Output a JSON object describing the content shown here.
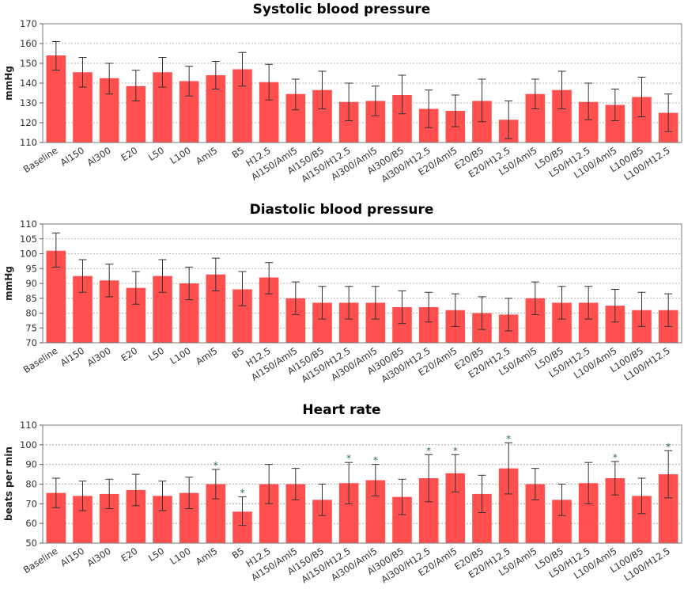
{
  "chart_data": [
    {
      "type": "bar",
      "title": "Systolic blood pressure",
      "xlabel": "",
      "ylabel": "mmHg",
      "ylim": [
        110,
        170
      ],
      "yticks": [
        110,
        120,
        130,
        140,
        150,
        160,
        170
      ],
      "categories": [
        "Baseline",
        "Al150",
        "Al300",
        "E20",
        "L50",
        "L100",
        "Aml5",
        "B5",
        "H12.5",
        "Al150/Aml5",
        "Al150/B5",
        "Al150/H12.5",
        "Al300/Aml5",
        "Al300/B5",
        "Al300/H12.5",
        "E20/Aml5",
        "E20/B5",
        "E20/H12.5",
        "L50/Aml5",
        "L50/B5",
        "L50/H12.5",
        "L100/Aml5",
        "L100/B5",
        "L100/H12.5"
      ],
      "values": [
        154,
        145.5,
        142.5,
        138.5,
        145.5,
        141,
        144,
        147,
        140.5,
        134.5,
        136.5,
        130.5,
        131,
        134,
        127,
        126,
        131,
        121.5,
        134.5,
        136.5,
        130.5,
        129,
        133,
        125
      ],
      "error_upper": [
        161,
        153,
        150,
        146.5,
        153,
        148.5,
        151,
        155.5,
        149.5,
        142,
        146,
        140,
        138.5,
        144,
        136.5,
        134,
        142,
        131,
        142,
        146,
        140,
        137,
        143,
        134.5
      ],
      "error_lower": [
        146.5,
        138,
        134.5,
        131,
        138,
        133.5,
        137,
        138.5,
        131.5,
        126.5,
        127,
        121,
        123.5,
        124.5,
        117.5,
        118,
        120.5,
        112,
        127,
        127,
        121.5,
        121,
        123,
        115.5
      ],
      "significant": [],
      "grid": true,
      "color": "#ff4f4f"
    },
    {
      "type": "bar",
      "title": "Diastolic blood pressure",
      "xlabel": "",
      "ylabel": "mmHg",
      "ylim": [
        70,
        110
      ],
      "yticks": [
        70,
        75,
        80,
        85,
        90,
        95,
        100,
        105,
        110
      ],
      "categories": [
        "Baseline",
        "Al150",
        "Al300",
        "E20",
        "L50",
        "L100",
        "Aml5",
        "B5",
        "H12.5",
        "Al150/Aml5",
        "Al150/B5",
        "Al150/H12.5",
        "Al300/Aml5",
        "Al300/B5",
        "Al300/H12.5",
        "E20/Aml5",
        "E20/B5",
        "E20/H12.5",
        "L50/Aml5",
        "L50/B5",
        "L50/H12.5",
        "L100/Aml5",
        "L100/B5",
        "L100/H12.5"
      ],
      "values": [
        101,
        92.5,
        91,
        88.5,
        92.5,
        90,
        93,
        88,
        92,
        85,
        83.5,
        83.5,
        83.5,
        82,
        82,
        81,
        80,
        79.5,
        85,
        83.5,
        83.5,
        82.5,
        81,
        81
      ],
      "error_upper": [
        107,
        98,
        96.5,
        94,
        98,
        95.5,
        98.5,
        94,
        97,
        90.5,
        89,
        89,
        89,
        87.5,
        87,
        86.5,
        85.5,
        85,
        90.5,
        89,
        89,
        88,
        87,
        86.5
      ],
      "error_lower": [
        95.5,
        87,
        85.5,
        83,
        87,
        84.5,
        87.5,
        82.5,
        86.5,
        79.5,
        78,
        78,
        78,
        76.5,
        77,
        75.5,
        74.5,
        74,
        79.5,
        78,
        78,
        77,
        75.5,
        75.5
      ],
      "significant": [],
      "grid": true,
      "color": "#ff4f4f"
    },
    {
      "type": "bar",
      "title": "Heart rate",
      "xlabel": "",
      "ylabel": "beats per min",
      "ylim": [
        50,
        110
      ],
      "yticks": [
        50,
        60,
        70,
        80,
        90,
        100,
        110
      ],
      "categories": [
        "Baseline",
        "Al150",
        "Al300",
        "E20",
        "L50",
        "L100",
        "Aml5",
        "B5",
        "H12.5",
        "Al150/Aml5",
        "Al150/B5",
        "Al150/H12.5",
        "Al300/Aml5",
        "Al300/B5",
        "Al300/H12.5",
        "E20/Aml5",
        "E20/B5",
        "E20/H12.5",
        "L50/Aml5",
        "L50/B5",
        "L50/H12.5",
        "L100/Aml5",
        "L100/B5",
        "L100/H12.5"
      ],
      "values": [
        75.5,
        74,
        75,
        77,
        74,
        75.5,
        80,
        66,
        80,
        80,
        72,
        80.5,
        82,
        73.5,
        83,
        85.5,
        75,
        88,
        80,
        72,
        80.5,
        83,
        74,
        85
      ],
      "error_upper": [
        83,
        81.5,
        82.5,
        85,
        81.5,
        83.5,
        87.5,
        73.5,
        90,
        88,
        80,
        91,
        90,
        82.5,
        95,
        95,
        84.5,
        101,
        88,
        80,
        91,
        91.5,
        83,
        97
      ],
      "error_lower": [
        68,
        66.5,
        67.5,
        69,
        66.5,
        67.5,
        72.5,
        59,
        70,
        72,
        64,
        70,
        74,
        64.5,
        71,
        76,
        65.5,
        75,
        72,
        64,
        70,
        74.5,
        65,
        73
      ],
      "significant": [
        "Aml5",
        "B5",
        "Al150/H12.5",
        "Al300/Aml5",
        "Al300/H12.5",
        "E20/Aml5",
        "E20/H12.5",
        "L100/Aml5",
        "L100/H12.5"
      ],
      "significance_marker": "*",
      "grid": true,
      "color": "#ff4f4f"
    }
  ]
}
